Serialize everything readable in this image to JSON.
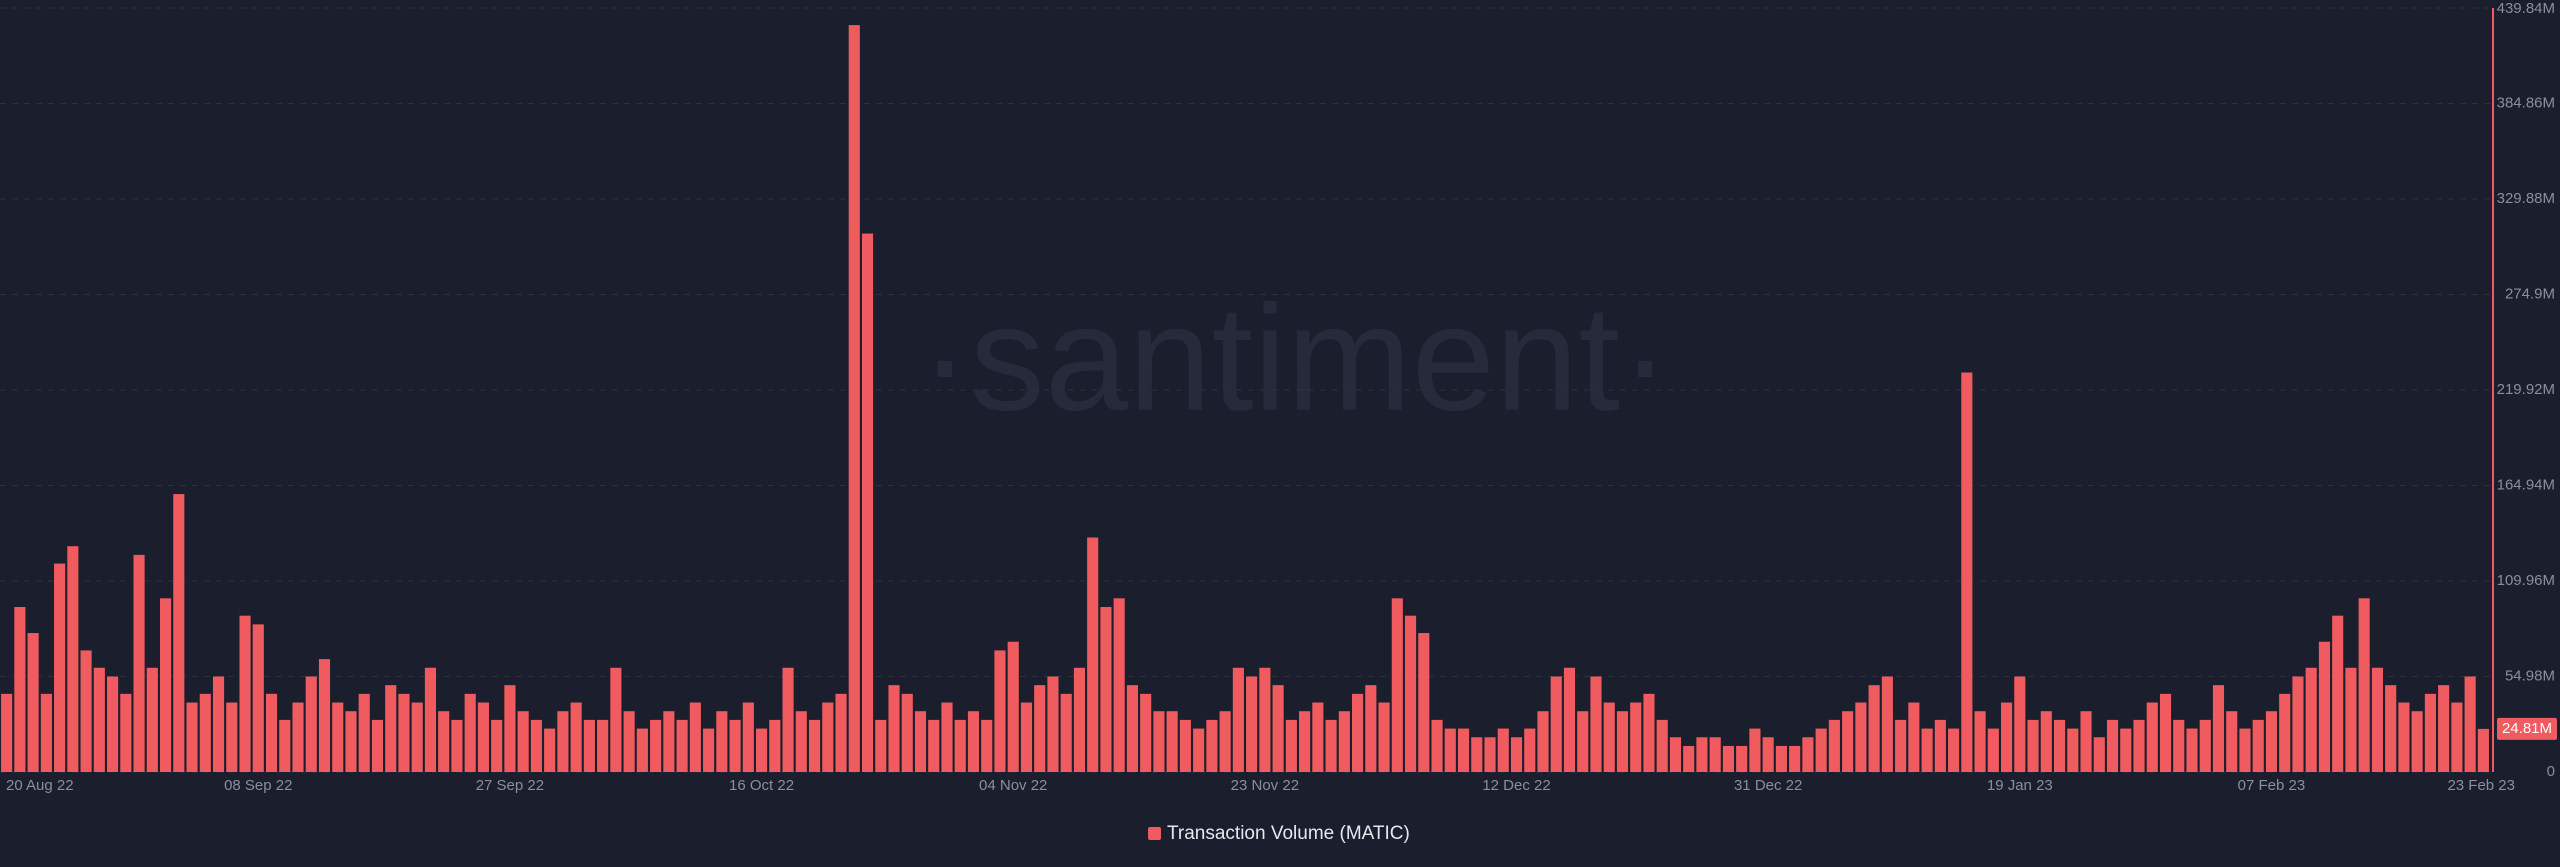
{
  "chart_data": {
    "type": "bar",
    "watermark": "·santiment·",
    "categories": [
      "20 Aug 22",
      null,
      null,
      null,
      null,
      null,
      null,
      null,
      null,
      null,
      null,
      null,
      null,
      null,
      null,
      null,
      null,
      null,
      null,
      "08 Sep 22",
      null,
      null,
      null,
      null,
      null,
      null,
      null,
      null,
      null,
      null,
      null,
      null,
      null,
      null,
      null,
      null,
      null,
      null,
      "27 Sep 22",
      null,
      null,
      null,
      null,
      null,
      null,
      null,
      null,
      null,
      null,
      null,
      null,
      null,
      null,
      null,
      null,
      null,
      null,
      "16 Oct 22",
      null,
      null,
      null,
      null,
      null,
      null,
      null,
      null,
      null,
      null,
      null,
      null,
      null,
      null,
      null,
      null,
      null,
      null,
      "04 Nov 22",
      null,
      null,
      null,
      null,
      null,
      null,
      null,
      null,
      null,
      null,
      null,
      null,
      null,
      null,
      null,
      null,
      null,
      null,
      "23 Nov 22",
      null,
      null,
      null,
      null,
      null,
      null,
      null,
      null,
      null,
      null,
      null,
      null,
      null,
      null,
      null,
      null,
      null,
      null,
      "12 Dec 22",
      null,
      null,
      null,
      null,
      null,
      null,
      null,
      null,
      null,
      null,
      null,
      null,
      null,
      null,
      null,
      null,
      null,
      null,
      "31 Dec 22",
      null,
      null,
      null,
      null,
      null,
      null,
      null,
      null,
      null,
      null,
      null,
      null,
      null,
      null,
      null,
      null,
      null,
      null,
      "19 Jan 23",
      null,
      null,
      null,
      null,
      null,
      null,
      null,
      null,
      null,
      null,
      null,
      null,
      null,
      null,
      null,
      null,
      null,
      null,
      "07 Feb 23",
      null,
      null,
      null,
      null,
      null,
      null,
      null,
      null,
      null,
      null,
      null,
      null,
      null,
      null,
      null,
      "23 Feb 23"
    ],
    "series": [
      {
        "name": "Transaction Volume (MATIC)",
        "color": "#ef5b5e",
        "values": [
          45,
          95,
          80,
          45,
          120,
          130,
          70,
          60,
          55,
          45,
          125,
          60,
          100,
          160,
          40,
          45,
          55,
          40,
          90,
          85,
          45,
          30,
          40,
          55,
          65,
          40,
          35,
          45,
          30,
          50,
          45,
          40,
          60,
          35,
          30,
          45,
          40,
          30,
          50,
          35,
          30,
          25,
          35,
          40,
          30,
          30,
          60,
          35,
          25,
          30,
          35,
          30,
          40,
          25,
          35,
          30,
          40,
          25,
          30,
          60,
          35,
          30,
          40,
          45,
          430,
          310,
          30,
          50,
          45,
          35,
          30,
          40,
          30,
          35,
          30,
          70,
          75,
          40,
          50,
          55,
          45,
          60,
          135,
          95,
          100,
          50,
          45,
          35,
          35,
          30,
          25,
          30,
          35,
          60,
          55,
          60,
          50,
          30,
          35,
          40,
          30,
          35,
          45,
          50,
          40,
          100,
          90,
          80,
          30,
          25,
          25,
          20,
          20,
          25,
          20,
          25,
          35,
          55,
          60,
          35,
          55,
          40,
          35,
          40,
          45,
          30,
          20,
          15,
          20,
          20,
          15,
          15,
          25,
          20,
          15,
          15,
          20,
          25,
          30,
          35,
          40,
          50,
          55,
          30,
          40,
          25,
          30,
          25,
          230,
          35,
          25,
          40,
          55,
          30,
          35,
          30,
          25,
          35,
          20,
          30,
          25,
          30,
          40,
          45,
          30,
          25,
          30,
          50,
          35,
          25,
          30,
          35,
          45,
          55,
          60,
          75,
          90,
          60,
          100,
          60,
          50,
          40,
          35,
          45,
          50,
          40,
          55,
          24.81
        ]
      }
    ],
    "last_value": {
      "value": 24.81,
      "label": "24.81M"
    },
    "ylim": [
      0,
      439.84
    ],
    "yticks": [
      0,
      {
        "value": 54.98,
        "label": "54.98M"
      },
      {
        "value": 109.96,
        "label": "109.96M"
      },
      {
        "value": 164.94,
        "label": "164.94M"
      },
      {
        "value": 219.92,
        "label": "219.92M"
      },
      {
        "value": 274.9,
        "label": "274.9M"
      },
      {
        "value": 329.88,
        "label": "329.88M"
      },
      {
        "value": 384.86,
        "label": "384.86M"
      },
      {
        "value": 439.84,
        "label": "439.84M"
      }
    ],
    "grid": true
  }
}
